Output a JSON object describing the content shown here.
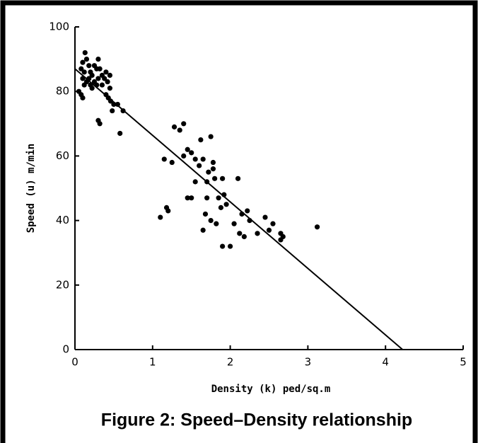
{
  "chart_data": {
    "type": "scatter",
    "caption": "Figure 2: Speed–Density relationship",
    "x_label": "Density (k) ped/sq.m",
    "y_label": "Speed (u) m/min",
    "xlim": [
      0,
      5
    ],
    "xticks": [
      0,
      1,
      2,
      3,
      4,
      5
    ],
    "ylim": [
      0,
      100
    ],
    "yticks": [
      0,
      20,
      40,
      60,
      80,
      100
    ],
    "color": "#000000",
    "series": [
      {
        "x": [
          0.05,
          0.08,
          0.1,
          0.12,
          0.1,
          0.13,
          0.15,
          0.18,
          0.2,
          0.22,
          0.25,
          0.28,
          0.3,
          0.32,
          0.35,
          0.38,
          0.4,
          0.42,
          0.45,
          0.15,
          0.2,
          0.25,
          0.3,
          0.35,
          0.18,
          0.22,
          0.28,
          0.12,
          0.08,
          0.4,
          0.43,
          0.46,
          0.5,
          0.48,
          0.55,
          0.62,
          0.3,
          0.32,
          0.58,
          0.1,
          0.45,
          1.1,
          1.15,
          1.18,
          1.2,
          1.25,
          1.28,
          1.35,
          1.4,
          1.4,
          1.45,
          1.5,
          1.45,
          1.5,
          1.55,
          1.55,
          1.6,
          1.62,
          1.65,
          1.65,
          1.68,
          1.7,
          1.72,
          1.75,
          1.75,
          1.78,
          1.78,
          1.8,
          1.82,
          1.85,
          1.88,
          1.9,
          1.9,
          1.92,
          2.0,
          2.1,
          2.12,
          2.15,
          2.18,
          2.22,
          2.25,
          2.35,
          2.45,
          2.5,
          2.55,
          2.65,
          2.65,
          2.68,
          3.12,
          1.7,
          1.95,
          2.05
        ],
        "values": [
          80,
          79,
          84,
          86,
          89,
          92,
          90,
          88,
          86,
          85,
          88,
          87,
          90,
          87,
          85,
          84,
          86,
          83,
          81,
          83,
          82,
          83,
          84,
          82,
          84,
          81,
          82,
          82,
          87,
          79,
          78,
          77,
          76,
          74,
          76,
          74,
          71,
          70,
          67,
          78,
          85,
          41,
          59,
          44,
          43,
          58,
          69,
          68,
          70,
          60,
          47,
          47,
          62,
          61,
          59,
          52,
          57,
          65,
          59,
          37,
          42,
          47,
          55,
          66,
          40,
          58,
          56,
          53,
          39,
          47,
          44,
          32,
          53,
          48,
          32,
          53,
          36,
          42,
          35,
          43,
          40,
          36,
          41,
          37,
          39,
          34,
          36,
          35,
          38,
          52,
          45,
          39
        ]
      }
    ],
    "fit_line": {
      "x": [
        0,
        4.22
      ],
      "values": [
        87,
        0
      ]
    }
  }
}
